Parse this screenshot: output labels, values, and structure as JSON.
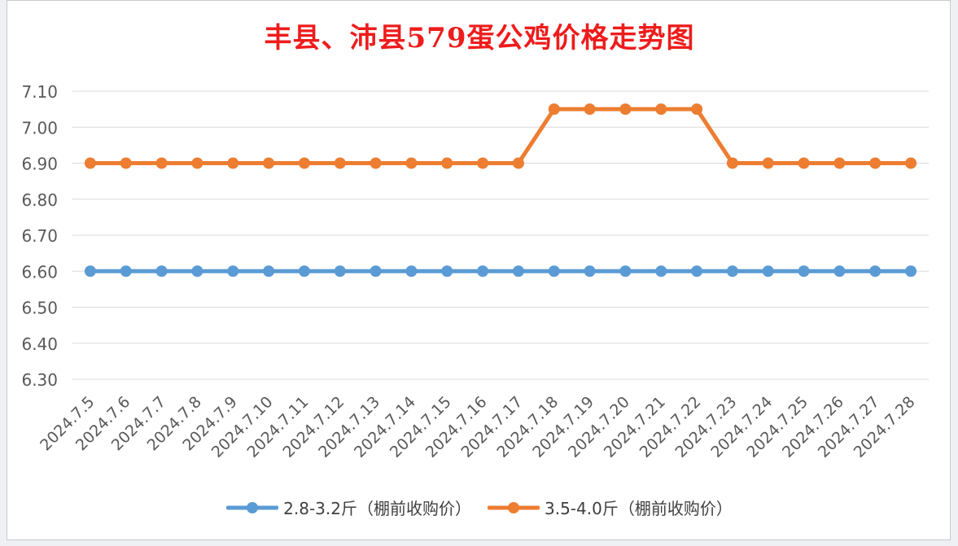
{
  "chart_data": {
    "type": "line",
    "title": "丰县、沛县579蛋公鸡价格走势图",
    "xlabel": "",
    "ylabel": "",
    "ylim": [
      6.3,
      7.1
    ],
    "yticks": [
      "7.10",
      "7.00",
      "6.90",
      "6.80",
      "6.70",
      "6.60",
      "6.50",
      "6.40",
      "6.30"
    ],
    "categories": [
      "2024.7.5",
      "2024.7.6",
      "2024.7.7",
      "2024.7.8",
      "2024.7.9",
      "2024.7.10",
      "2024.7.11",
      "2024.7.12",
      "2024.7.13",
      "2024.7.14",
      "2024.7.15",
      "2024.7.16",
      "2024.7.17",
      "2024.7.18",
      "2024.7.19",
      "2024.7.20",
      "2024.7.21",
      "2024.7.22",
      "2024.7.23",
      "2024.7.24",
      "2024.7.25",
      "2024.7.26",
      "2024.7.27",
      "2024.7.28"
    ],
    "series": [
      {
        "name": "2.8-3.2斤（棚前收购价）",
        "color": "#5b9bd5",
        "values": [
          6.6,
          6.6,
          6.6,
          6.6,
          6.6,
          6.6,
          6.6,
          6.6,
          6.6,
          6.6,
          6.6,
          6.6,
          6.6,
          6.6,
          6.6,
          6.6,
          6.6,
          6.6,
          6.6,
          6.6,
          6.6,
          6.6,
          6.6,
          6.6
        ]
      },
      {
        "name": "3.5-4.0斤（棚前收购价）",
        "color": "#ed7d31",
        "values": [
          6.9,
          6.9,
          6.9,
          6.9,
          6.9,
          6.9,
          6.9,
          6.9,
          6.9,
          6.9,
          6.9,
          6.9,
          6.9,
          7.05,
          7.05,
          7.05,
          7.05,
          7.05,
          6.9,
          6.9,
          6.9,
          6.9,
          6.9,
          6.9
        ]
      }
    ],
    "grid": true,
    "legend": "bottom",
    "title_color": "#ee1c1c"
  }
}
